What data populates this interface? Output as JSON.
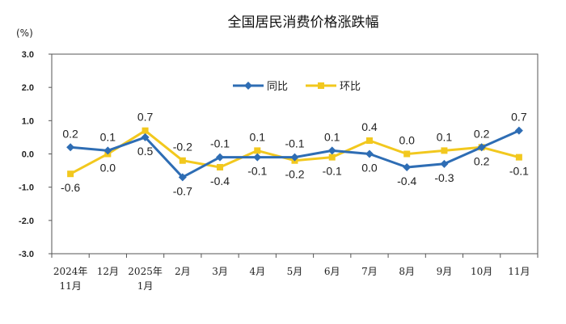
{
  "chart_data": {
    "type": "line",
    "title": "全国居民消费价格涨跌幅",
    "unit_label": "(%)",
    "xlabel": "",
    "ylabel": "",
    "ylim": [
      -3.0,
      3.0
    ],
    "yticks": [
      "3.0",
      "2.0",
      "1.0",
      "0.0",
      "-1.0",
      "-2.0",
      "-3.0"
    ],
    "categories": [
      [
        "2024年",
        "11月"
      ],
      [
        "12月"
      ],
      [
        "2025年",
        "1月"
      ],
      [
        "2月"
      ],
      [
        "3月"
      ],
      [
        "4月"
      ],
      [
        "5月"
      ],
      [
        "6月"
      ],
      [
        "7月"
      ],
      [
        "8月"
      ],
      [
        "9月"
      ],
      [
        "10月"
      ],
      [
        "11月"
      ]
    ],
    "legend": {
      "placement": "top-center"
    },
    "grid": false,
    "series": [
      {
        "name": "同比",
        "color": "#2e6db4",
        "marker": "diamond",
        "values": [
          0.2,
          0.1,
          0.5,
          -0.7,
          -0.1,
          -0.1,
          -0.1,
          0.1,
          0.0,
          -0.4,
          -0.3,
          0.2,
          0.7
        ],
        "labels": [
          "0.2",
          "0.1",
          "0.5",
          "-0.7",
          "-0.1",
          "-0.1",
          "-0.1",
          "0.1",
          "0.0",
          "-0.4",
          "-0.3",
          "0.2",
          "0.7"
        ]
      },
      {
        "name": "环比",
        "color": "#f2c81e",
        "marker": "square",
        "values": [
          -0.6,
          0.0,
          0.7,
          -0.2,
          -0.4,
          0.1,
          -0.2,
          -0.1,
          0.4,
          0.0,
          0.1,
          0.2,
          -0.1
        ],
        "labels": [
          "-0.6",
          "0.0",
          "0.7",
          "-0.2",
          "-0.4",
          "0.1",
          "-0.2",
          "-0.1",
          "0.4",
          "0.0",
          "0.1",
          "0.2",
          "-0.1"
        ]
      }
    ]
  }
}
